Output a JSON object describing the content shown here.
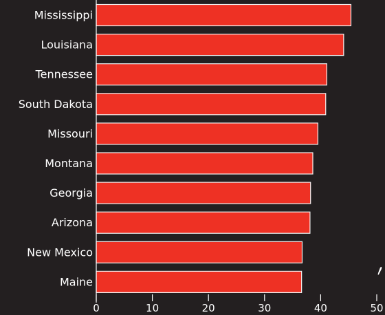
{
  "chart_data": {
    "type": "bar",
    "orientation": "horizontal",
    "categories": [
      "Mississippi",
      "Louisiana",
      "Tennessee",
      "South Dakota",
      "Missouri",
      "Montana",
      "Georgia",
      "Arizona",
      "New Mexico",
      "Maine"
    ],
    "values": [
      45.4,
      44.1,
      41.1,
      40.9,
      39.5,
      38.6,
      38.2,
      38.1,
      36.7,
      36.6
    ],
    "xlim": [
      0,
      50
    ],
    "xticks": [
      "0",
      "10",
      "20",
      "30",
      "40",
      "50"
    ],
    "grid": false,
    "colors": {
      "background": "#231f20",
      "bar": "#ee3124",
      "bar_outline": "#f2f2f2",
      "text": "#ffffff"
    }
  }
}
